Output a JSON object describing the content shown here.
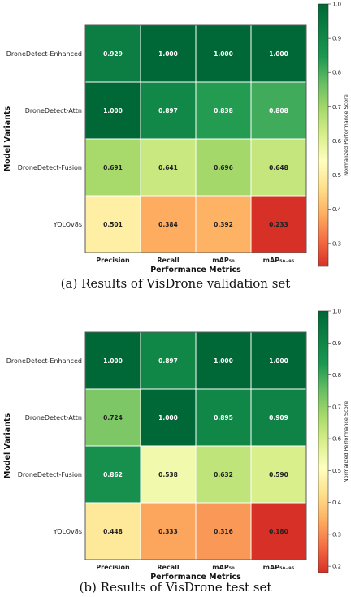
{
  "chart_data": [
    {
      "type": "heatmap",
      "caption": "(a) Results of VisDrone validation set",
      "xlabel": "Performance Metrics",
      "ylabel": "Model Variants",
      "colorbar_label": "Normalized Performance Score",
      "colorbar_ticks": [
        "1.0",
        "0.9",
        "0.8",
        "0.7",
        "0.6",
        "0.5",
        "0.4",
        "0.3"
      ],
      "colorbar_range": [
        0.233,
        1.0
      ],
      "columns": [
        "Precision",
        "Recall",
        "mAP₅₀",
        "mAP₅₀₋₉₅"
      ],
      "rows": [
        "DroneDetect-Enhanced",
        "DroneDetect-Attn",
        "DroneDetect-Fusion",
        "YOLOv8s"
      ],
      "values": [
        [
          "0.929",
          "1.000",
          "1.000",
          "1.000"
        ],
        [
          "1.000",
          "0.897",
          "0.838",
          "0.808"
        ],
        [
          "0.691",
          "0.641",
          "0.696",
          "0.648"
        ],
        [
          "0.501",
          "0.384",
          "0.392",
          "0.233"
        ]
      ]
    },
    {
      "type": "heatmap",
      "caption": "(b) Results of VisDrone test set",
      "xlabel": "Performance Metrics",
      "ylabel": "Model Variants",
      "colorbar_label": "Normalized Performance Score",
      "colorbar_ticks": [
        "1.0",
        "0.9",
        "0.8",
        "0.7",
        "0.6",
        "0.5",
        "0.4",
        "0.3",
        "0.2"
      ],
      "colorbar_range": [
        0.18,
        1.0
      ],
      "columns": [
        "Precision",
        "Recall",
        "mAP₅₀",
        "mAP₅₀₋₉₅"
      ],
      "rows": [
        "DroneDetect-Enhanced",
        "DroneDetect-Attn",
        "DroneDetect-Fusion",
        "YOLOv8s"
      ],
      "values": [
        [
          "1.000",
          "0.897",
          "1.000",
          "1.000"
        ],
        [
          "0.724",
          "1.000",
          "0.895",
          "0.909"
        ],
        [
          "0.862",
          "0.538",
          "0.632",
          "0.590"
        ],
        [
          "0.448",
          "0.333",
          "0.316",
          "0.180"
        ]
      ]
    }
  ]
}
